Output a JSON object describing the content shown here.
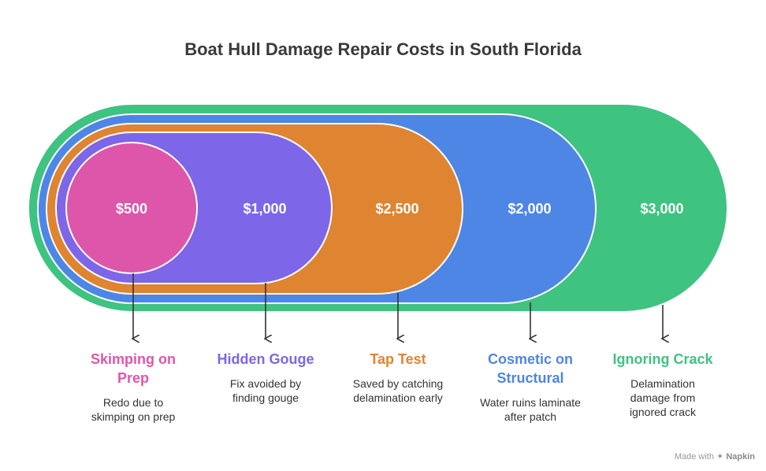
{
  "title": "Boat Hull Damage Repair Costs in South Florida",
  "stages": [
    {
      "cost": "$500",
      "name": "Skimping on Prep",
      "desc": "Redo due to skimping on prep",
      "color": "#DE56AA"
    },
    {
      "cost": "$1,000",
      "name": "Hidden Gouge",
      "desc": "Fix avoided by finding gouge",
      "color": "#7E66E8"
    },
    {
      "cost": "$2,500",
      "name": "Tap Test",
      "desc": "Saved by catching delamination early",
      "color": "#DF8431"
    },
    {
      "cost": "$2,000",
      "name": "Cosmetic on Structural",
      "desc": "Water ruins laminate after patch",
      "color": "#4E86E6"
    },
    {
      "cost": "$3,000",
      "name": "Ignoring Crack",
      "desc": "Delamination damage from ignored crack",
      "color": "#3EC381"
    }
  ],
  "footer": {
    "prefix": "Made with",
    "brand": "Napkin"
  }
}
